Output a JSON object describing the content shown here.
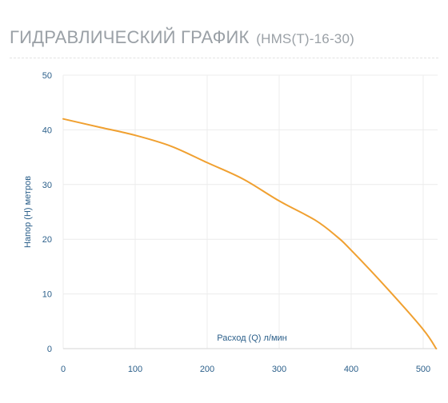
{
  "header": {
    "title": "ГИДРАВЛИЧЕСКИЙ ГРАФИК",
    "model": "(HMS(T)-16-30)"
  },
  "chart_data": {
    "type": "line",
    "title": "ГИДРАВЛИЧЕСКИЙ ГРАФИК (HMS(T)-16-30)",
    "xlabel": "Расход (Q) л/мин",
    "ylabel": "Напор (H) метров",
    "xlim": [
      0,
      520
    ],
    "ylim": [
      0,
      50
    ],
    "x_ticks": [
      0,
      100,
      200,
      300,
      400,
      500
    ],
    "y_ticks": [
      0,
      10,
      20,
      30,
      40,
      50
    ],
    "grid": true,
    "legend": "none",
    "series": [
      {
        "color": "#f0a030",
        "x": [
          0,
          50,
          100,
          150,
          200,
          250,
          300,
          350,
          380,
          400,
          450,
          500,
          518
        ],
        "y": [
          42,
          40.5,
          39,
          37,
          34,
          31,
          27,
          23.5,
          20.5,
          18,
          11,
          3.5,
          0
        ]
      }
    ]
  },
  "colors": {
    "line": "#f0a030",
    "axis_text": "#2b5f8a",
    "grid": "#ececec",
    "title": "#9aa0a6"
  }
}
